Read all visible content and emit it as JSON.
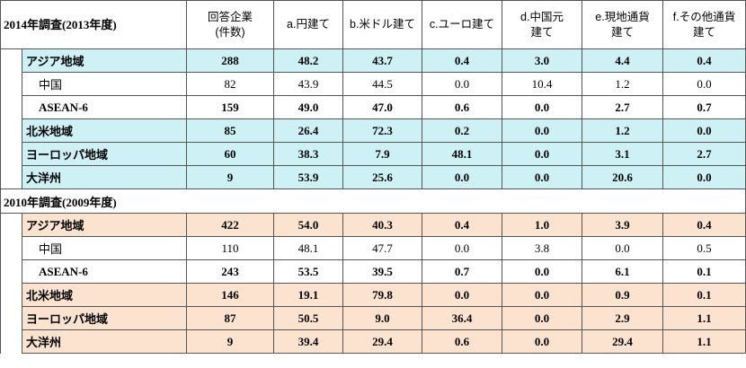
{
  "headers": {
    "companies": "回答企業\n(件数)",
    "a": "a.円建て",
    "b": "b.米ドル建て",
    "c": "c.ユーロ建て",
    "d": "d.中国元\n建て",
    "e": "e.現地通貨\n建て",
    "f": "f.その他通貨\n建て"
  },
  "sections": [
    {
      "title": "2014年調査(2013年度)",
      "rows": [
        {
          "label": "アジア地域",
          "values": [
            "288",
            "48.2",
            "43.7",
            "0.4",
            "3.0",
            "4.4",
            "0.4"
          ]
        },
        {
          "label": "中国",
          "values": [
            "82",
            "43.9",
            "44.5",
            "0.0",
            "10.4",
            "1.2",
            "0.0"
          ]
        },
        {
          "label": "ASEAN-6",
          "values": [
            "159",
            "49.0",
            "47.0",
            "0.6",
            "0.0",
            "2.7",
            "0.7"
          ]
        },
        {
          "label": "北米地域",
          "values": [
            "85",
            "26.4",
            "72.3",
            "0.2",
            "0.0",
            "1.2",
            "0.0"
          ]
        },
        {
          "label": "ヨーロッパ地域",
          "values": [
            "60",
            "38.3",
            "7.9",
            "48.1",
            "0.0",
            "3.1",
            "2.7"
          ]
        },
        {
          "label": "大洋州",
          "values": [
            "9",
            "53.9",
            "25.6",
            "0.0",
            "0.0",
            "20.6",
            "0.0"
          ]
        }
      ]
    },
    {
      "title": "2010年調査(2009年度)",
      "rows": [
        {
          "label": "アジア地域",
          "values": [
            "422",
            "54.0",
            "40.3",
            "0.4",
            "1.0",
            "3.9",
            "0.4"
          ]
        },
        {
          "label": "中国",
          "values": [
            "110",
            "48.1",
            "47.7",
            "0.0",
            "3.8",
            "0.0",
            "0.5"
          ]
        },
        {
          "label": "ASEAN-6",
          "values": [
            "243",
            "53.5",
            "39.5",
            "0.7",
            "0.0",
            "6.1",
            "0.1"
          ]
        },
        {
          "label": "北米地域",
          "values": [
            "146",
            "19.1",
            "79.8",
            "0.0",
            "0.0",
            "0.9",
            "0.1"
          ]
        },
        {
          "label": "ヨーロッパ地域",
          "values": [
            "87",
            "50.5",
            "9.0",
            "36.4",
            "0.0",
            "2.9",
            "1.1"
          ]
        },
        {
          "label": "大洋州",
          "values": [
            "9",
            "39.4",
            "29.4",
            "0.6",
            "0.0",
            "29.4",
            "1.1"
          ]
        }
      ]
    }
  ]
}
